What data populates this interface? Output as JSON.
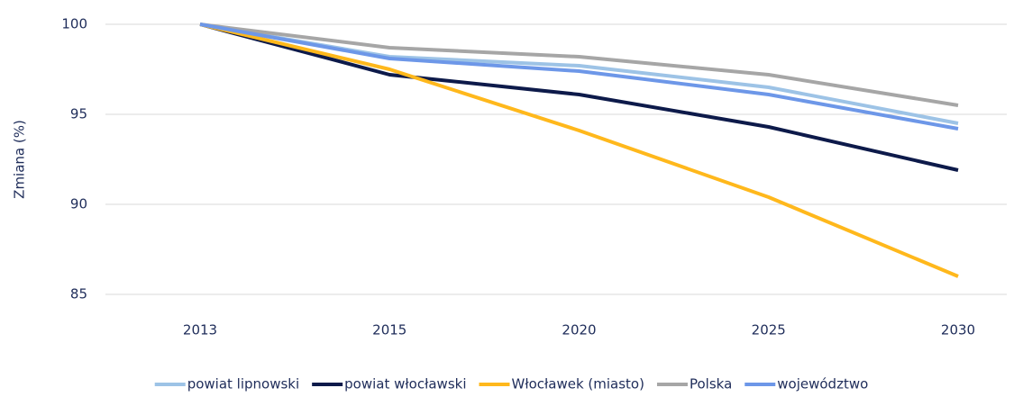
{
  "chart_data": {
    "type": "line",
    "y_label": "Zmiana (%)",
    "categories": [
      "2013",
      "2015",
      "2020",
      "2025",
      "2030"
    ],
    "ylim": [
      85,
      100
    ],
    "yticks": [
      85,
      90,
      95,
      100
    ],
    "grid": true,
    "legend": "bottom",
    "series": [
      {
        "name": "powiat lipnowski",
        "color": "#9dc3e6",
        "values": [
          100,
          98.2,
          97.7,
          96.5,
          94.5
        ]
      },
      {
        "name": "powiat włocławski",
        "color": "#0d1a4a",
        "values": [
          100,
          97.2,
          96.1,
          94.3,
          91.9
        ]
      },
      {
        "name": "Włocławek (miasto)",
        "color": "#ffb81c",
        "values": [
          100,
          97.5,
          94.1,
          90.4,
          86.0
        ]
      },
      {
        "name": "Polska",
        "color": "#a6a6a6",
        "values": [
          100,
          98.7,
          98.2,
          97.2,
          95.5
        ]
      },
      {
        "name": "województwo",
        "color": "#6d97e8",
        "values": [
          100,
          98.1,
          97.4,
          96.1,
          94.2
        ]
      }
    ]
  }
}
